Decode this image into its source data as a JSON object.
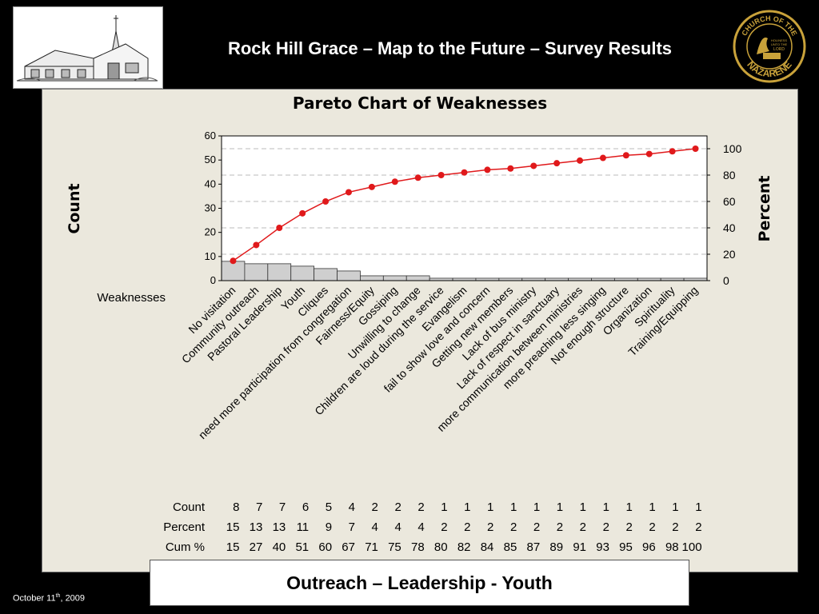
{
  "slide": {
    "title": "Rock Hill Grace – Map to the Future – Survey Results",
    "subtitle": "Outreach – Leadership - Youth",
    "footer_date_main": "October 11",
    "footer_date_sup": "th",
    "footer_date_year": ", 2009",
    "seal_top_text": "CHURCH OF THE",
    "seal_bottom_text": "NAZARENE",
    "seal_motto_1": "HOLINESS",
    "seal_motto_2": "UNTO THE",
    "seal_motto_3": "LORD",
    "colors": {
      "background": "#000000",
      "panel": "#ebe8dd",
      "line": "#e0191b",
      "bar": "#cfcfcf",
      "seal_gold": "#c9a23a"
    }
  },
  "chart_data": {
    "type": "bar",
    "title": "Pareto Chart of Weaknesses",
    "ylabel": "Count",
    "ylabel_right": "Percent",
    "xlabel": "Weaknesses",
    "ylim": [
      0,
      60
    ],
    "ylim_right": [
      0,
      100
    ],
    "yticks": [
      0,
      10,
      20,
      30,
      40,
      50,
      60
    ],
    "yticks_right": [
      0,
      20,
      40,
      60,
      80,
      100
    ],
    "grid": true,
    "categories": [
      "No visitation",
      "Community outreach",
      "Pastoral Leadership",
      "Youth",
      "Cliques",
      "need more participation from congregation",
      "Fairness/Equity",
      "Gossiping",
      "Unwilling to change",
      "Children are loud during the service",
      "Evangelism",
      "fail to show love and concern",
      "Getting new members",
      "Lack of bus ministry",
      "Lack of respect in sanctuary",
      "more communication between ministries",
      "more preaching less singing",
      "Not enough structure",
      "Organization",
      "Spirituality",
      "Training/Equipping"
    ],
    "series": [
      {
        "name": "Count",
        "type": "bar",
        "values": [
          8,
          7,
          7,
          6,
          5,
          4,
          2,
          2,
          2,
          1,
          1,
          1,
          1,
          1,
          1,
          1,
          1,
          1,
          1,
          1,
          1
        ]
      },
      {
        "name": "Cum %",
        "type": "line",
        "values": [
          15,
          27,
          40,
          51,
          60,
          67,
          71,
          75,
          78,
          80,
          82,
          84,
          85,
          87,
          89,
          91,
          93,
          95,
          96,
          98,
          100
        ]
      }
    ],
    "table": {
      "row_labels": [
        "Count",
        "Percent",
        "Cum %"
      ],
      "count": [
        "8",
        "7",
        "7",
        "6",
        "5",
        "4",
        "2",
        "2",
        "2",
        "1",
        "1",
        "1",
        "1",
        "1",
        "1",
        "1",
        "1",
        "1",
        "1",
        "1",
        "1"
      ],
      "percent": [
        "15",
        "13",
        "13",
        "11",
        "9",
        "7",
        "4",
        "4",
        "4",
        "2",
        "2",
        "2",
        "2",
        "2",
        "2",
        "2",
        "2",
        "2",
        "2",
        "2",
        "2"
      ],
      "cum": [
        "15",
        "27",
        "40",
        "51",
        "60",
        "67",
        "71",
        "75",
        "78",
        "80",
        "82",
        "84",
        "85",
        "87",
        "89",
        "91",
        "93",
        "95",
        "96",
        "98",
        "100"
      ]
    }
  }
}
